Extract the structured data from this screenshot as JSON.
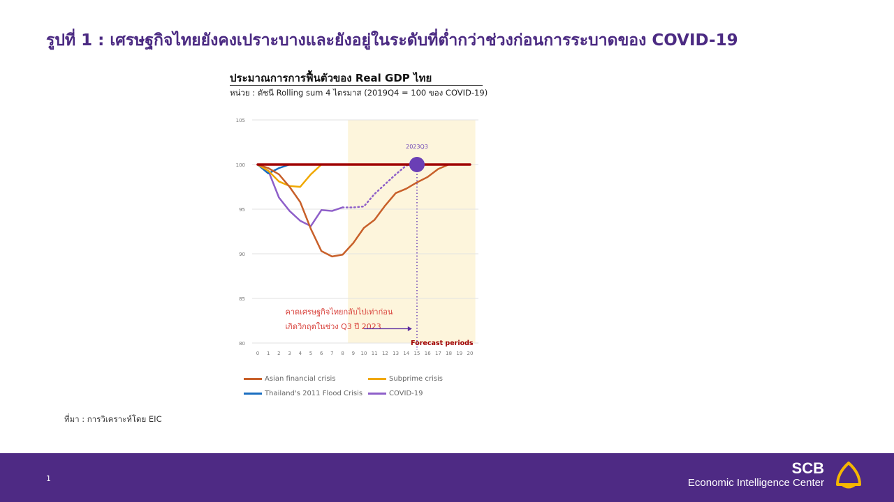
{
  "page": {
    "title": "รูปที่ 1 : เศรษฐกิจไทยยังคงเปราะบางและยังอยู่ในระดับที่ต่ำกว่าช่วงก่อนการระบาดของ COVID-19",
    "source": "ที่มา : การวิเคราะห์โดย EIC",
    "page_number": "1"
  },
  "brand": {
    "name": "SCB",
    "subtitle": "Economic Intelligence Center",
    "logo_icon": "scb-shell-logo-icon",
    "accent": "#f5b700"
  },
  "colors": {
    "footer": "#4e2a84",
    "title": "#4b2a82"
  },
  "chart_data": {
    "type": "line",
    "title": "ประมาณการการฟื้นตัวของ Real GDP ไทย",
    "subtitle": "หน่วย : ดัชนี Rolling sum 4 ไตรมาส (2019Q4 = 100 ของ COVID-19)",
    "x": [
      0,
      1,
      2,
      3,
      4,
      5,
      6,
      7,
      8,
      9,
      10,
      11,
      12,
      13,
      14,
      15,
      16,
      17,
      18,
      19,
      20
    ],
    "ylim": [
      80,
      105
    ],
    "yticks": [
      80,
      85,
      90,
      95,
      100,
      105
    ],
    "grid": true,
    "legend_position": "bottom",
    "series": [
      {
        "name": "Asian financial crisis",
        "color": "#c8602a",
        "x": [
          0,
          1,
          2,
          3,
          4,
          5,
          6,
          7,
          8,
          9,
          10,
          11,
          12,
          13,
          14,
          15,
          16,
          17,
          18
        ],
        "values": [
          100,
          99.6,
          98.9,
          97.5,
          95.8,
          92.8,
          90.3,
          89.7,
          89.9,
          91.2,
          92.9,
          93.8,
          95.4,
          96.8,
          97.3,
          98.0,
          98.6,
          99.5,
          100
        ]
      },
      {
        "name": "Subprime crisis",
        "color": "#f0a800",
        "x": [
          0,
          1,
          2,
          3,
          4,
          5,
          6
        ],
        "values": [
          100,
          99.3,
          98.1,
          97.6,
          97.5,
          98.9,
          100
        ]
      },
      {
        "name": "Thailand's 2011 Flood Crisis",
        "color": "#1a6ec0",
        "x": [
          0,
          1,
          2,
          3
        ],
        "values": [
          100,
          99.0,
          99.6,
          100
        ]
      },
      {
        "name": "COVID-19",
        "color": "#8e5fc9",
        "x": [
          0,
          1,
          2,
          3,
          4,
          5,
          6,
          7,
          8
        ],
        "values": [
          100,
          99.3,
          96.3,
          94.8,
          93.7,
          93.1,
          94.9,
          94.8,
          95.2
        ]
      },
      {
        "name": "",
        "color": "#8e5fc9",
        "dashed": true,
        "x": [
          8,
          9,
          10,
          11,
          12,
          13,
          14,
          15
        ],
        "values": [
          95.2,
          95.2,
          95.3,
          96.7,
          97.8,
          98.9,
          99.9,
          100
        ]
      },
      {
        "name": "",
        "color": "#a00000",
        "x": [
          0,
          20
        ],
        "values": [
          100,
          100
        ]
      }
    ],
    "forecast": {
      "from_x": 8.5,
      "to_x": 20.5,
      "label": "Forecast periods",
      "shade_color": "#fdf5dc",
      "label_color": "#a00000"
    },
    "marker": {
      "x": 15,
      "y": 100,
      "label": "2023Q3",
      "color": "#6a3fb5"
    },
    "annotation": {
      "lines": [
        "คาดเศรษฐกิจไทยกลับไปเท่าก่อน",
        "เกิดวิกฤตในช่วง Q3 ปี 2023"
      ],
      "color": "#d8403a"
    }
  }
}
